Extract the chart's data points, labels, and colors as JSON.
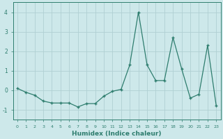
{
  "x": [
    0,
    1,
    2,
    3,
    4,
    5,
    6,
    7,
    8,
    9,
    10,
    11,
    12,
    13,
    14,
    15,
    16,
    17,
    18,
    19,
    20,
    21,
    22,
    23
  ],
  "y": [
    0.1,
    -0.1,
    -0.25,
    -0.55,
    -0.65,
    -0.65,
    -0.65,
    -0.85,
    -0.68,
    -0.68,
    -0.3,
    -0.05,
    0.05,
    1.3,
    4.0,
    1.3,
    0.5,
    0.5,
    2.7,
    1.1,
    -0.4,
    -0.2,
    2.3,
    -0.8
  ],
  "line_color": "#2e7d6e",
  "marker": "+",
  "markersize": 3.5,
  "linewidth": 0.9,
  "xlabel": "Humidex (Indice chaleur)",
  "ylim": [
    -1.5,
    4.5
  ],
  "xlim": [
    -0.5,
    23.5
  ],
  "yticks": [
    -1,
    0,
    1,
    2,
    3,
    4
  ],
  "xticks": [
    0,
    1,
    2,
    3,
    4,
    5,
    6,
    7,
    8,
    9,
    10,
    11,
    12,
    13,
    14,
    15,
    16,
    17,
    18,
    19,
    20,
    21,
    22,
    23
  ],
  "bg_color": "#cde8ea",
  "grid_color": "#b0d0d3"
}
